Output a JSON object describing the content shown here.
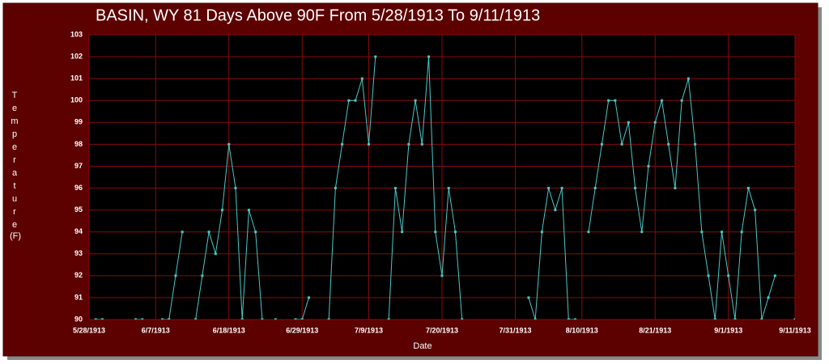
{
  "chart_data": {
    "type": "line",
    "title": "BASIN, WY  81 Days Above 90F From 5/28/1913 To 9/11/1913",
    "x_label": "Date",
    "y_label": "Temperature",
    "y_label_unit": "(F)",
    "x": [
      0,
      1,
      2,
      3,
      4,
      5,
      6,
      7,
      8,
      9,
      10,
      11,
      12,
      13,
      14,
      15,
      16,
      17,
      18,
      19,
      20,
      21,
      22,
      23,
      24,
      25,
      26,
      27,
      28,
      29,
      30,
      31,
      32,
      33,
      34,
      35,
      36,
      37,
      38,
      39,
      40,
      41,
      42,
      43,
      44,
      45,
      46,
      47,
      48,
      49,
      50,
      51,
      52,
      53,
      54,
      55,
      56,
      57,
      58,
      59,
      60,
      61,
      62,
      63,
      64,
      65,
      66,
      67,
      68,
      69,
      70,
      71,
      72,
      73,
      74,
      75,
      76,
      77,
      78,
      79,
      80,
      81,
      82,
      83,
      84,
      85,
      86,
      87,
      88,
      89,
      90,
      91,
      92,
      93,
      94,
      95,
      96,
      97,
      98,
      99,
      100,
      101,
      102,
      103,
      104,
      105,
      106
    ],
    "series": [
      {
        "name": "Temperature",
        "color": "#48c8c8",
        "values": [
          null,
          90,
          90,
          null,
          null,
          null,
          null,
          90,
          90,
          null,
          null,
          90,
          90,
          92,
          94,
          null,
          90,
          92,
          94,
          93,
          95,
          98,
          96,
          90,
          95,
          94,
          90,
          null,
          90,
          null,
          null,
          90,
          90,
          91,
          null,
          null,
          90,
          96,
          98,
          100,
          100,
          101,
          98,
          102,
          null,
          90,
          96,
          94,
          98,
          100,
          98,
          102,
          94,
          92,
          96,
          94,
          90,
          null,
          null,
          null,
          null,
          null,
          null,
          null,
          null,
          null,
          91,
          90,
          94,
          96,
          95,
          96,
          90,
          90,
          null,
          94,
          96,
          98,
          100,
          100,
          98,
          99,
          96,
          94,
          97,
          99,
          100,
          98,
          96,
          100,
          101,
          98,
          94,
          92,
          90,
          94,
          92,
          90,
          94,
          96,
          95,
          90,
          91,
          92,
          null,
          null,
          90
        ]
      }
    ],
    "xlim": [
      0,
      106
    ],
    "xticks": [
      {
        "value": 0,
        "label": "5/28/1913"
      },
      {
        "value": 10,
        "label": "6/7/1913"
      },
      {
        "value": 21,
        "label": "6/18/1913"
      },
      {
        "value": 32,
        "label": "6/29/1913"
      },
      {
        "value": 42,
        "label": "7/9/1913"
      },
      {
        "value": 53,
        "label": "7/20/1913"
      },
      {
        "value": 64,
        "label": "7/31/1913"
      },
      {
        "value": 74,
        "label": "8/10/1913"
      },
      {
        "value": 85,
        "label": "8/21/1913"
      },
      {
        "value": 96,
        "label": "9/1/1913"
      },
      {
        "value": 106,
        "label": "9/11/1913"
      }
    ],
    "ylim": [
      90,
      103
    ],
    "yticks": [
      90,
      91,
      92,
      93,
      94,
      95,
      96,
      97,
      98,
      99,
      100,
      101,
      102,
      103
    ],
    "grid": true
  }
}
